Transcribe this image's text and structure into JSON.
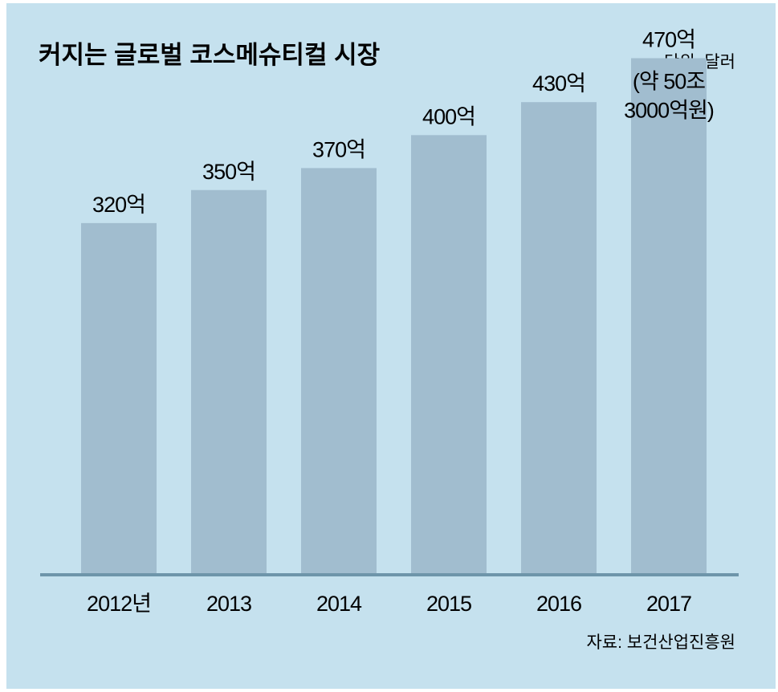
{
  "chart_data": {
    "type": "bar",
    "title": "커지는 글로벌 코스메슈티컬 시장",
    "unit_label": "단위: 달러",
    "categories": [
      "2012년",
      "2013",
      "2014",
      "2015",
      "2016",
      "2017"
    ],
    "values": [
      320,
      350,
      370,
      400,
      430,
      470
    ],
    "value_labels": [
      "320억",
      "350억",
      "370억",
      "400억",
      "430억",
      "470억"
    ],
    "annotation": [
      "(약 50조",
      "3000억원)"
    ],
    "source": "자료: 보건산업진흥원",
    "ylim": [
      0,
      520
    ],
    "colors": {
      "background": "#c5e1ee",
      "bar": "#a1bdcf",
      "baseline": "#6e95aa"
    }
  }
}
